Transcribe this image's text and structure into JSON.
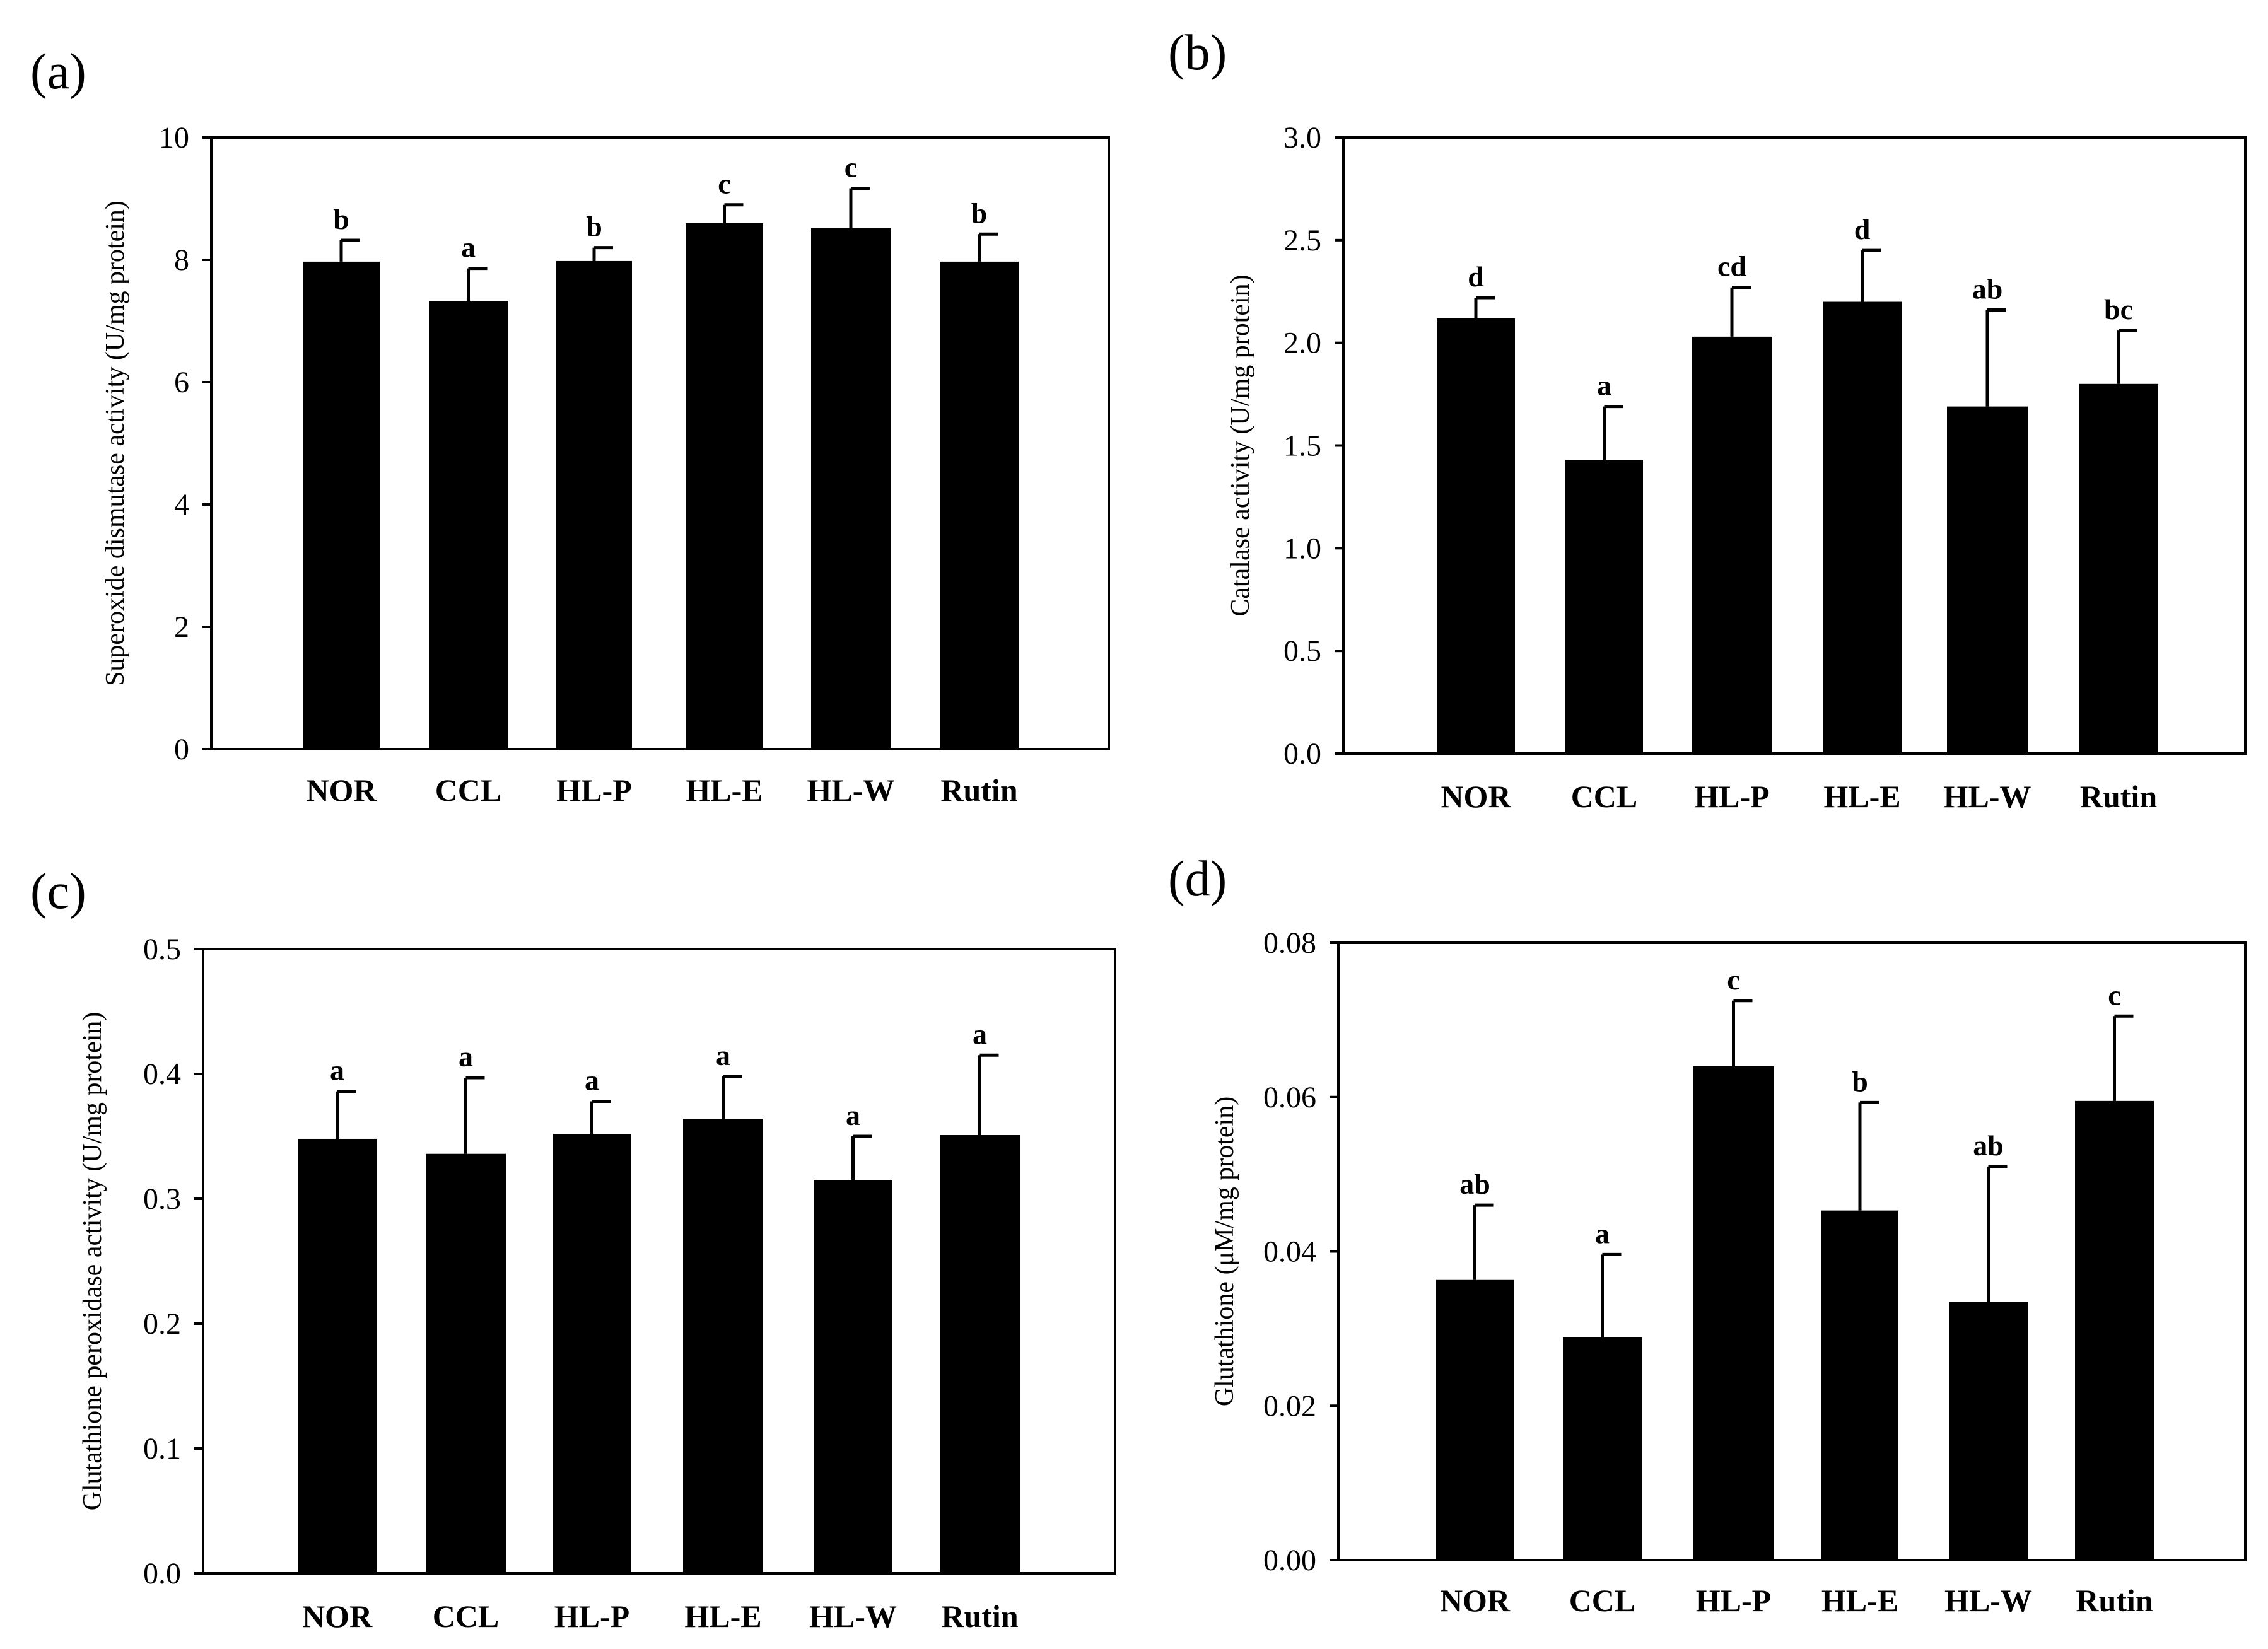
{
  "chart_data": [
    {
      "type": "bar",
      "panel": "(a)",
      "title": "",
      "xlabel": "",
      "ylabel": "Superoxide dismutase activity (U/mg protein)",
      "ylim": [
        0,
        10
      ],
      "yticks": [
        0,
        2,
        4,
        6,
        8,
        10
      ],
      "ytick_labels": [
        "0",
        "2",
        "4",
        "6",
        "8",
        "10"
      ],
      "categories": [
        "NOR",
        "CCL",
        "HL-P",
        "HL-E",
        "HL-W",
        "Rutin"
      ],
      "values": [
        7.97,
        7.33,
        7.98,
        8.6,
        8.52,
        7.97
      ],
      "errors": [
        0.35,
        0.53,
        0.22,
        0.3,
        0.65,
        0.45
      ],
      "labels": [
        "b",
        "a",
        "b",
        "c",
        "c",
        "b"
      ],
      "grid": false,
      "bar_color": "#000000"
    },
    {
      "type": "bar",
      "panel": "(b)",
      "title": "",
      "xlabel": "",
      "ylabel": "Catalase activity (U/mg protein)",
      "ylim": [
        0,
        3
      ],
      "yticks": [
        0,
        0.5,
        1,
        1.5,
        2,
        2.5,
        3
      ],
      "ytick_labels": [
        "0.0",
        "0.5",
        "1.0",
        "1.5",
        "2.0",
        "2.5",
        "3.0"
      ],
      "categories": [
        "NOR",
        "CCL",
        "HL-P",
        "HL-E",
        "HL-W",
        "Rutin"
      ],
      "values": [
        2.12,
        1.43,
        2.03,
        2.2,
        1.69,
        1.8
      ],
      "errors": [
        0.1,
        0.26,
        0.24,
        0.25,
        0.47,
        0.26
      ],
      "labels": [
        "d",
        "a",
        "cd",
        "d",
        "ab",
        "bc"
      ],
      "grid": false,
      "bar_color": "#000000"
    },
    {
      "type": "bar",
      "panel": "(c)",
      "title": "",
      "xlabel": "",
      "ylabel": "Glutathione peroxidase activity (U/mg protein)",
      "ylim": [
        0,
        0.5
      ],
      "yticks": [
        0,
        0.1,
        0.2,
        0.3,
        0.4,
        0.5
      ],
      "ytick_labels": [
        "0.0",
        "0.1",
        "0.2",
        "0.3",
        "0.4",
        "0.5"
      ],
      "categories": [
        "NOR",
        "CCL",
        "HL-P",
        "HL-E",
        "HL-W",
        "Rutin"
      ],
      "values": [
        0.348,
        0.336,
        0.352,
        0.364,
        0.315,
        0.351
      ],
      "errors": [
        0.038,
        0.061,
        0.026,
        0.034,
        0.035,
        0.064
      ],
      "labels": [
        "a",
        "a",
        "a",
        "a",
        "a",
        "a"
      ],
      "grid": false,
      "bar_color": "#000000"
    },
    {
      "type": "bar",
      "panel": "(d)",
      "title": "",
      "xlabel": "",
      "ylabel": "Glutathione (μM/mg protein)",
      "ylim": [
        0,
        0.08
      ],
      "yticks": [
        0,
        0.02,
        0.04,
        0.06,
        0.08
      ],
      "ytick_labels": [
        "0.00",
        "0.02",
        "0.04",
        "0.06",
        "0.08"
      ],
      "categories": [
        "NOR",
        "CCL",
        "HL-P",
        "HL-E",
        "HL-W",
        "Rutin"
      ],
      "values": [
        0.0363,
        0.0289,
        0.064,
        0.0453,
        0.0335,
        0.0595
      ],
      "errors": [
        0.0097,
        0.0107,
        0.0085,
        0.014,
        0.0175,
        0.011
      ],
      "labels": [
        "ab",
        "a",
        "c",
        "b",
        "ab",
        "c"
      ],
      "grid": false,
      "bar_color": "#000000"
    }
  ]
}
